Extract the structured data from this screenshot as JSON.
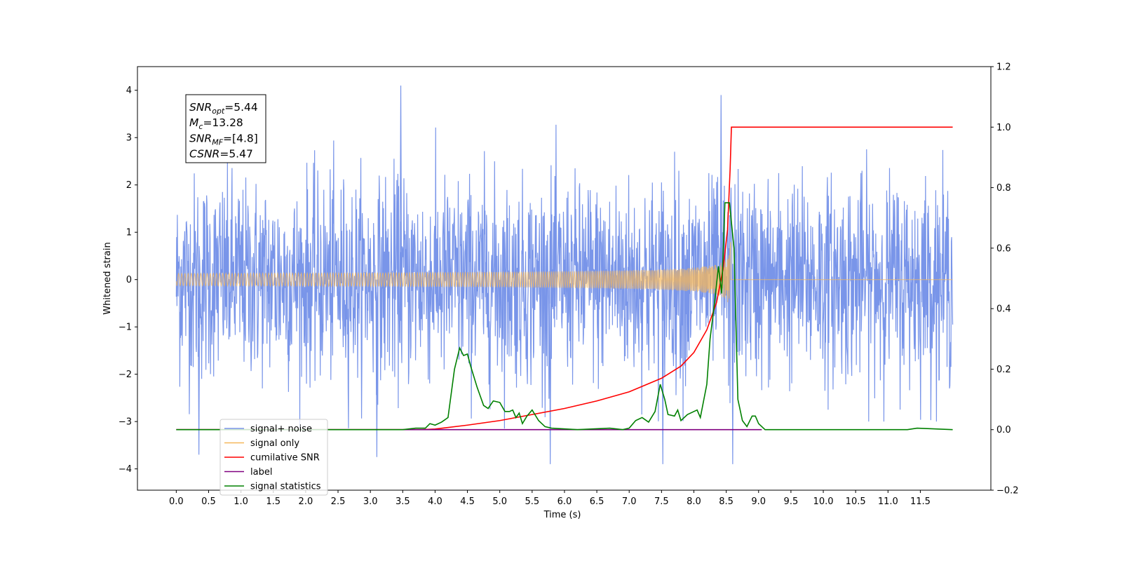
{
  "chart_data": {
    "type": "line",
    "title": "",
    "xlabel": "Time (s)",
    "ylabel": "Whitened strain",
    "y2label": "",
    "xlim": [
      -0.6,
      12.59
    ],
    "ylim": [
      -4.45,
      4.5
    ],
    "y2lim": [
      -0.2,
      1.2
    ],
    "xticks": [
      0.0,
      0.5,
      1.0,
      1.5,
      2.0,
      2.5,
      3.0,
      3.5,
      4.0,
      4.5,
      5.0,
      5.5,
      6.0,
      6.5,
      7.0,
      7.5,
      8.0,
      8.5,
      9.0,
      9.5,
      10.0,
      10.5,
      11.0,
      11.5
    ],
    "xtick_labels": [
      "0.0",
      "0.5",
      "1.0",
      "1.5",
      "2.0",
      "2.5",
      "3.0",
      "3.5",
      "4.0",
      "4.5",
      "5.0",
      "5.5",
      "6.0",
      "6.5",
      "7.0",
      "7.5",
      "8.0",
      "8.5",
      "9.0",
      "9.5",
      "10.0",
      "10.5",
      "11.0",
      "11.5"
    ],
    "yticks": [
      -4,
      -3,
      -2,
      -1,
      0,
      1,
      2,
      3,
      4
    ],
    "ytick_labels": [
      "−4",
      "−3",
      "−2",
      "−1",
      "0",
      "1",
      "2",
      "3",
      "4"
    ],
    "y2ticks": [
      -0.2,
      0.0,
      0.2,
      0.4,
      0.6,
      0.8,
      1.0,
      1.2
    ],
    "y2tick_labels": [
      "−0.2",
      "0.0",
      "0.2",
      "0.4",
      "0.6",
      "0.8",
      "1.0",
      "1.2"
    ],
    "grid": false,
    "legend_position": "lower-left",
    "series": [
      {
        "name": "signal+ noise",
        "color": "#7995e9",
        "axis": "left",
        "kind": "noise",
        "x_range": [
          0.0,
          12.0
        ],
        "envelope": [
          -3.0,
          3.1
        ],
        "peak_points": [
          {
            "x": 3.47,
            "y": 4.1
          },
          {
            "x": 8.42,
            "y": 3.9
          },
          {
            "x": 8.6,
            "y": -3.9
          },
          {
            "x": 5.78,
            "y": -3.9
          },
          {
            "x": 7.52,
            "y": -3.9
          },
          {
            "x": 0.35,
            "y": -3.7
          },
          {
            "x": 3.1,
            "y": -3.75
          }
        ]
      },
      {
        "name": "signal only",
        "color": "#f5b75a",
        "axis": "left",
        "kind": "chirp",
        "x_range": [
          0.0,
          12.0
        ],
        "merger_time": 8.57,
        "peak_amplitude": 0.95
      },
      {
        "name": "cumilative SNR",
        "color": "#ff0000",
        "axis": "right",
        "points": [
          [
            0.0,
            0.0
          ],
          [
            3.8,
            0.0
          ],
          [
            4.0,
            0.002
          ],
          [
            4.5,
            0.015
          ],
          [
            5.0,
            0.03
          ],
          [
            5.5,
            0.05
          ],
          [
            6.0,
            0.07
          ],
          [
            6.5,
            0.095
          ],
          [
            7.0,
            0.125
          ],
          [
            7.5,
            0.17
          ],
          [
            7.8,
            0.21
          ],
          [
            8.0,
            0.255
          ],
          [
            8.2,
            0.33
          ],
          [
            8.35,
            0.42
          ],
          [
            8.45,
            0.53
          ],
          [
            8.52,
            0.66
          ],
          [
            8.56,
            0.86
          ],
          [
            8.58,
            1.0
          ],
          [
            12.0,
            1.0
          ]
        ]
      },
      {
        "name": "label",
        "color": "#800080",
        "axis": "right",
        "points": [
          [
            0.0,
            0.0
          ],
          [
            9.05,
            0.0
          ]
        ]
      },
      {
        "name": "signal statistics",
        "color": "#008000",
        "axis": "right",
        "points": [
          [
            0.0,
            0.0
          ],
          [
            3.5,
            0.0
          ],
          [
            3.7,
            0.005
          ],
          [
            3.85,
            0.005
          ],
          [
            3.92,
            0.02
          ],
          [
            4.0,
            0.015
          ],
          [
            4.1,
            0.025
          ],
          [
            4.2,
            0.04
          ],
          [
            4.3,
            0.2
          ],
          [
            4.38,
            0.27
          ],
          [
            4.44,
            0.245
          ],
          [
            4.5,
            0.25
          ],
          [
            4.55,
            0.21
          ],
          [
            4.65,
            0.14
          ],
          [
            4.75,
            0.08
          ],
          [
            4.82,
            0.07
          ],
          [
            4.9,
            0.095
          ],
          [
            5.0,
            0.09
          ],
          [
            5.08,
            0.06
          ],
          [
            5.15,
            0.06
          ],
          [
            5.2,
            0.065
          ],
          [
            5.25,
            0.04
          ],
          [
            5.3,
            0.055
          ],
          [
            5.35,
            0.02
          ],
          [
            5.42,
            0.045
          ],
          [
            5.5,
            0.065
          ],
          [
            5.6,
            0.03
          ],
          [
            5.7,
            0.01
          ],
          [
            5.8,
            0.005
          ],
          [
            6.2,
            0.0
          ],
          [
            6.7,
            0.005
          ],
          [
            6.9,
            0.0
          ],
          [
            7.0,
            0.005
          ],
          [
            7.1,
            0.03
          ],
          [
            7.2,
            0.04
          ],
          [
            7.3,
            0.025
          ],
          [
            7.4,
            0.06
          ],
          [
            7.48,
            0.15
          ],
          [
            7.55,
            0.1
          ],
          [
            7.6,
            0.05
          ],
          [
            7.7,
            0.045
          ],
          [
            7.75,
            0.065
          ],
          [
            7.8,
            0.03
          ],
          [
            7.9,
            0.05
          ],
          [
            8.0,
            0.06
          ],
          [
            8.05,
            0.065
          ],
          [
            8.1,
            0.04
          ],
          [
            8.2,
            0.15
          ],
          [
            8.25,
            0.3
          ],
          [
            8.32,
            0.42
          ],
          [
            8.38,
            0.54
          ],
          [
            8.43,
            0.45
          ],
          [
            8.48,
            0.75
          ],
          [
            8.55,
            0.75
          ],
          [
            8.62,
            0.6
          ],
          [
            8.68,
            0.1
          ],
          [
            8.75,
            0.03
          ],
          [
            8.82,
            0.01
          ],
          [
            8.9,
            0.045
          ],
          [
            8.95,
            0.045
          ],
          [
            9.0,
            0.02
          ],
          [
            9.1,
            0.0
          ],
          [
            11.3,
            0.0
          ],
          [
            11.45,
            0.005
          ],
          [
            12.0,
            0.0
          ]
        ]
      }
    ],
    "legend": [
      {
        "label": "signal+ noise",
        "color": "#7995e9"
      },
      {
        "label": "signal only",
        "color": "#f5b75a"
      },
      {
        "label": "cumilative SNR",
        "color": "#ff0000"
      },
      {
        "label": "label",
        "color": "#800080"
      },
      {
        "label": "signal statistics",
        "color": "#008000"
      }
    ],
    "annotation": [
      {
        "var": "SNR",
        "sub": "opt",
        "value": "=5.44"
      },
      {
        "var": "M",
        "sub": "c",
        "value": "=13.28"
      },
      {
        "var": "SNR",
        "sub": "MF",
        "value": "=[4.8]"
      },
      {
        "var": "CSNR",
        "sub": "",
        "value": "=5.47"
      }
    ]
  }
}
